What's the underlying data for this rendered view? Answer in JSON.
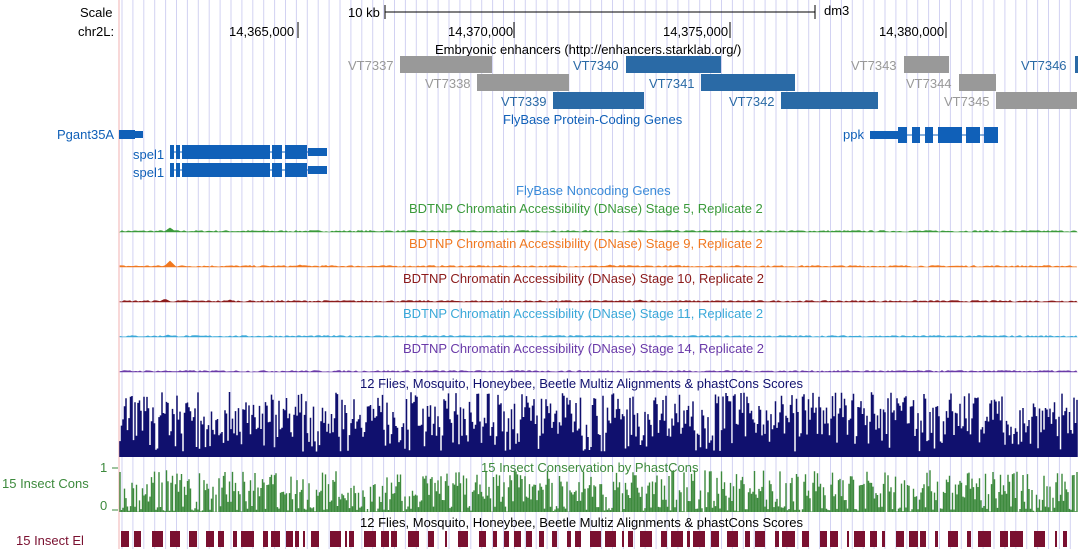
{
  "ruler": {
    "scale_label": "Scale",
    "scalebar_label": "10 kb",
    "assembly": "dm3",
    "chrom_label": "chr2L:",
    "ticks": [
      "14,365,000",
      "14,370,000",
      "14,375,000",
      "14,380,000"
    ]
  },
  "enhancers": {
    "title": "Embryonic enhancers (http://enhancers.starklab.org/)",
    "items": [
      {
        "id": "VT7337",
        "status": "inactive"
      },
      {
        "id": "VT7338",
        "status": "inactive"
      },
      {
        "id": "VT7339",
        "status": "active"
      },
      {
        "id": "VT7340",
        "status": "active"
      },
      {
        "id": "VT7341",
        "status": "active"
      },
      {
        "id": "VT7342",
        "status": "active"
      },
      {
        "id": "VT7343",
        "status": "inactive"
      },
      {
        "id": "VT7344",
        "status": "inactive"
      },
      {
        "id": "VT7345",
        "status": "inactive"
      },
      {
        "id": "VT7346",
        "status": "active"
      }
    ]
  },
  "protein_genes": {
    "title": "FlyBase Protein-Coding Genes",
    "genes": [
      "Pgant35A",
      "spel1",
      "spel1",
      "ppk"
    ]
  },
  "noncoding": {
    "title": "FlyBase Noncoding Genes"
  },
  "dnase": [
    {
      "title": "BDTNP Chromatin Accessibility (DNase) Stage 5, Replicate 2",
      "color": "#3a9a3a"
    },
    {
      "title": "BDTNP Chromatin Accessibility (DNase) Stage 9, Replicate 2",
      "color": "#f07820"
    },
    {
      "title": "BDTNP Chromatin Accessibility (DNase) Stage 10, Replicate 2",
      "color": "#8b1a1a"
    },
    {
      "title": "BDTNP Chromatin Accessibility (DNase) Stage 11, Replicate 2",
      "color": "#3aa8d8"
    },
    {
      "title": "BDTNP Chromatin Accessibility (DNase) Stage 14, Replicate 2",
      "color": "#6a3aa8"
    }
  ],
  "multiz": {
    "title": "12 Flies, Mosquito, Honeybee, Beetle Multiz Alignments & phastCons Scores",
    "color": "#10106e"
  },
  "conservation": {
    "side_label": "15 Insect Cons",
    "title": "15 Insect Conservation by PhastCons",
    "scale_max": "1",
    "scale_min": "0",
    "color": "#3d8a3d"
  },
  "elements": {
    "side_label": "15 Insect El",
    "title": "12 Flies, Mosquito, Honeybee, Beetle Multiz Alignments & phastCons Scores",
    "color": "#7a1030"
  },
  "colors": {
    "active": "#2a6aa6",
    "inactive": "#999999",
    "gene": "#1060b8",
    "guide_line": "#d2d2f2",
    "left_edge": "#f0b0b0"
  }
}
